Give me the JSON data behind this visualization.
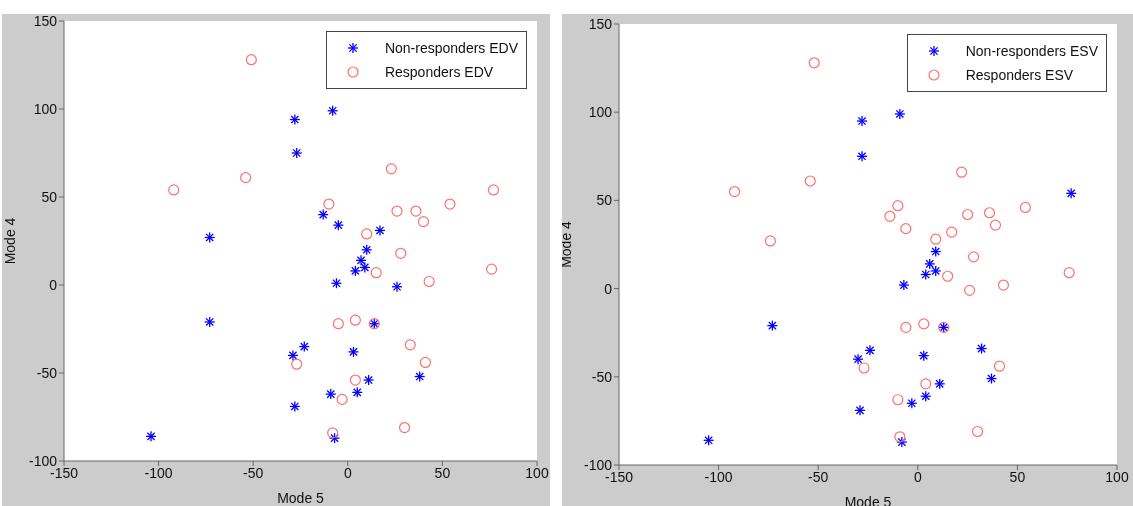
{
  "chart_data": [
    {
      "type": "scatter",
      "xlabel": "Mode 5",
      "ylabel": "Mode 4",
      "xlim": [
        -150,
        100
      ],
      "xticks": [
        -150,
        -100,
        -50,
        0,
        50,
        100
      ],
      "ylim": [
        -100,
        150
      ],
      "yticks": [
        -100,
        -50,
        0,
        50,
        100,
        150
      ],
      "legend": "top right",
      "series": [
        {
          "name": "Non-responders EDV",
          "color": "#0000ff",
          "marker": "cross",
          "x": [
            -28,
            -8,
            -27,
            -73,
            -73,
            -104,
            -13,
            -5,
            17,
            10,
            7,
            9,
            4,
            -6,
            26,
            14,
            3,
            -29,
            -23,
            11,
            38,
            5,
            -9,
            -28,
            -7
          ],
          "values": [
            94,
            99,
            75,
            27,
            -21,
            -86,
            40,
            34,
            31,
            20,
            14,
            10,
            8,
            1,
            -1,
            -22,
            -38,
            -40,
            -35,
            -54,
            -52,
            -61,
            -62,
            -69,
            -87
          ]
        },
        {
          "name": "Responders EDV",
          "color": "#ff7070",
          "marker": "circle",
          "x": [
            -51,
            -92,
            -54,
            -10,
            23,
            26,
            36,
            40,
            54,
            77,
            10,
            28,
            76,
            15,
            43,
            -5,
            4,
            14,
            33,
            -27,
            41,
            4,
            -3,
            -8,
            30
          ],
          "values": [
            128,
            54,
            61,
            46,
            66,
            42,
            42,
            36,
            46,
            54,
            29,
            18,
            9,
            7,
            2,
            -22,
            -20,
            -22,
            -34,
            -45,
            -44,
            -54,
            -65,
            -84,
            -81
          ]
        }
      ]
    },
    {
      "type": "scatter",
      "xlabel": "Mode 5",
      "ylabel": "Mode 4",
      "xlim": [
        -150,
        100
      ],
      "xticks": [
        -150,
        -100,
        -50,
        0,
        50,
        100
      ],
      "ylim": [
        -100,
        150
      ],
      "yticks": [
        -100,
        -50,
        0,
        50,
        100,
        150
      ],
      "legend": "top right",
      "series": [
        {
          "name": "Non-responders ESV",
          "color": "#0000ff",
          "marker": "cross",
          "x": [
            -28,
            -9,
            -28,
            77,
            9,
            6,
            9,
            4,
            -7,
            -73,
            13,
            -24,
            -30,
            3,
            32,
            11,
            37,
            4,
            -3,
            -29,
            -105,
            -8
          ],
          "values": [
            95,
            99,
            75,
            54,
            21,
            14,
            10,
            8,
            2,
            -21,
            -22,
            -35,
            -40,
            -38,
            -34,
            -54,
            -51,
            -61,
            -65,
            -69,
            -86,
            -87
          ]
        },
        {
          "name": "Responders ESV",
          "color": "#ff7070",
          "marker": "circle",
          "x": [
            -52,
            -92,
            -54,
            22,
            -14,
            -10,
            -6,
            9,
            17,
            25,
            36,
            39,
            54,
            -74,
            28,
            76,
            15,
            43,
            26,
            -6,
            3,
            13,
            -27,
            41,
            4,
            -10,
            -9,
            30
          ],
          "values": [
            128,
            55,
            61,
            66,
            41,
            47,
            34,
            28,
            32,
            42,
            43,
            36,
            46,
            27,
            18,
            9,
            7,
            2,
            -1,
            -22,
            -20,
            -22,
            -45,
            -44,
            -54,
            -63,
            -84,
            -81
          ]
        }
      ]
    }
  ]
}
